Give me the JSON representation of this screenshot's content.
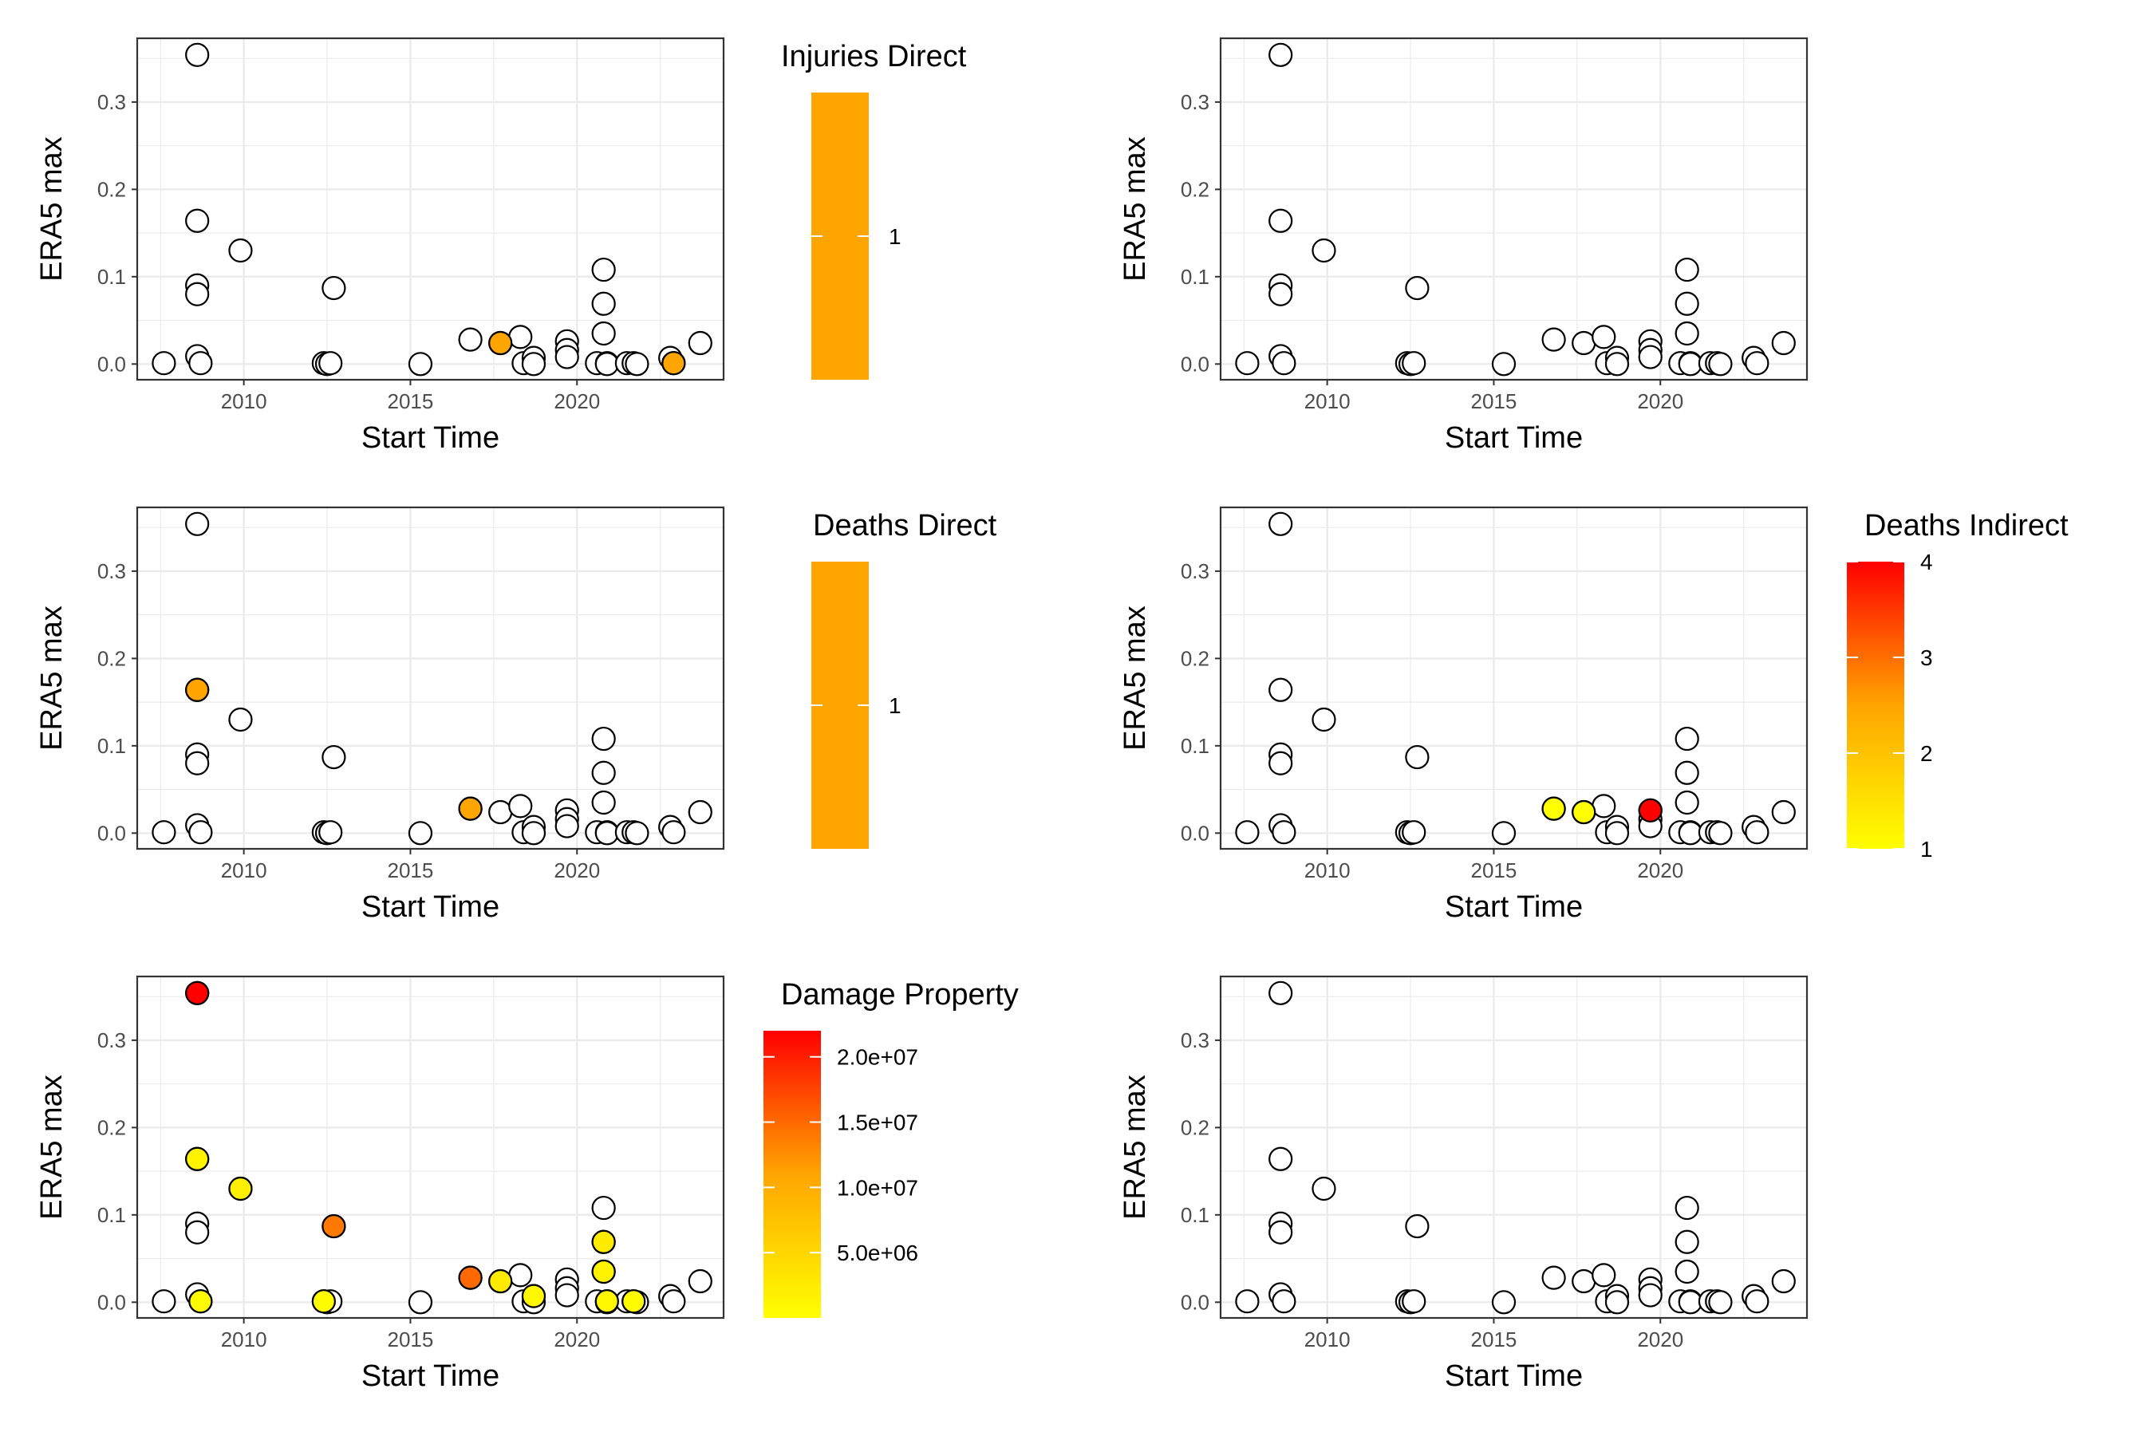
{
  "figure": {
    "xlabel": "Start Time",
    "ylabel": "ERA5 max",
    "xlim": [
      2006.8,
      2024.4
    ],
    "ylim": [
      -0.018,
      0.373
    ],
    "x_ticks": [
      2010,
      2015,
      2020
    ],
    "x_tick_labels": [
      "2010",
      "2015",
      "2020"
    ],
    "y_ticks": [
      0.0,
      0.1,
      0.2,
      0.3
    ],
    "y_tick_labels": [
      "0.0",
      "0.1",
      "0.2",
      "0.3"
    ],
    "colors": {
      "low": "#FFFF00",
      "mid": "#FFA500",
      "high": "#FF0000",
      "unfilled": "#FFFFFF",
      "outline": "#000000",
      "panel_border": "#333333",
      "grid": "#EBEBEB"
    }
  },
  "chart_data": [
    {
      "type": "scatter",
      "panel": "top-left",
      "xlabel": "Start Time",
      "ylabel": "ERA5 max",
      "legend": {
        "title": "Injuries Direct",
        "kind": "single",
        "color": "#FFA500",
        "labels": [
          "1"
        ]
      },
      "base_points": [
        [
          2007.6,
          0.001
        ],
        [
          2008.6,
          0.354
        ],
        [
          2008.6,
          0.164
        ],
        [
          2008.6,
          0.09
        ],
        [
          2008.6,
          0.08
        ],
        [
          2008.6,
          0.009
        ],
        [
          2008.7,
          0.001
        ],
        [
          2009.9,
          0.13
        ],
        [
          2012.4,
          0.001
        ],
        [
          2012.5,
          0.0
        ],
        [
          2012.6,
          0.001
        ],
        [
          2012.7,
          0.087
        ],
        [
          2015.3,
          0.0
        ],
        [
          2016.8,
          0.028
        ],
        [
          2017.7,
          0.024
        ],
        [
          2018.3,
          0.031
        ],
        [
          2018.4,
          0.001
        ],
        [
          2018.7,
          0.007
        ],
        [
          2018.7,
          0.0
        ],
        [
          2019.7,
          0.026
        ],
        [
          2019.7,
          0.016
        ],
        [
          2019.7,
          0.008
        ],
        [
          2020.6,
          0.001
        ],
        [
          2020.8,
          0.108
        ],
        [
          2020.8,
          0.069
        ],
        [
          2020.8,
          0.035
        ],
        [
          2020.9,
          0.001
        ],
        [
          2020.9,
          0.0
        ],
        [
          2021.5,
          0.001
        ],
        [
          2021.7,
          0.001
        ],
        [
          2021.8,
          0.0
        ],
        [
          2022.8,
          0.007
        ],
        [
          2022.9,
          0.001
        ],
        [
          2023.7,
          0.024
        ]
      ],
      "colored_points": [
        {
          "x": 2017.7,
          "y": 0.024,
          "value": 1,
          "color": "#FFA500"
        },
        {
          "x": 2022.9,
          "y": 0.001,
          "value": 1,
          "color": "#FFA500"
        }
      ]
    },
    {
      "type": "scatter",
      "panel": "top-right",
      "xlabel": "Start Time",
      "ylabel": "ERA5 max",
      "legend": null,
      "base_points": [
        [
          2007.6,
          0.001
        ],
        [
          2008.6,
          0.354
        ],
        [
          2008.6,
          0.164
        ],
        [
          2008.6,
          0.09
        ],
        [
          2008.6,
          0.08
        ],
        [
          2008.6,
          0.009
        ],
        [
          2008.7,
          0.001
        ],
        [
          2009.9,
          0.13
        ],
        [
          2012.4,
          0.001
        ],
        [
          2012.5,
          0.0
        ],
        [
          2012.6,
          0.001
        ],
        [
          2012.7,
          0.087
        ],
        [
          2015.3,
          0.0
        ],
        [
          2016.8,
          0.028
        ],
        [
          2017.7,
          0.024
        ],
        [
          2018.3,
          0.031
        ],
        [
          2018.4,
          0.001
        ],
        [
          2018.7,
          0.007
        ],
        [
          2018.7,
          0.0
        ],
        [
          2019.7,
          0.026
        ],
        [
          2019.7,
          0.016
        ],
        [
          2019.7,
          0.008
        ],
        [
          2020.6,
          0.001
        ],
        [
          2020.8,
          0.108
        ],
        [
          2020.8,
          0.069
        ],
        [
          2020.8,
          0.035
        ],
        [
          2020.9,
          0.001
        ],
        [
          2020.9,
          0.0
        ],
        [
          2021.5,
          0.001
        ],
        [
          2021.7,
          0.001
        ],
        [
          2021.8,
          0.0
        ],
        [
          2022.8,
          0.007
        ],
        [
          2022.9,
          0.001
        ],
        [
          2023.7,
          0.024
        ]
      ],
      "colored_points": []
    },
    {
      "type": "scatter",
      "panel": "middle-left",
      "xlabel": "Start Time",
      "ylabel": "ERA5 max",
      "legend": {
        "title": "Deaths Direct",
        "kind": "single",
        "color": "#FFA500",
        "labels": [
          "1"
        ]
      },
      "base_points": [
        [
          2007.6,
          0.001
        ],
        [
          2008.6,
          0.354
        ],
        [
          2008.6,
          0.164
        ],
        [
          2008.6,
          0.09
        ],
        [
          2008.6,
          0.08
        ],
        [
          2008.6,
          0.009
        ],
        [
          2008.7,
          0.001
        ],
        [
          2009.9,
          0.13
        ],
        [
          2012.4,
          0.001
        ],
        [
          2012.5,
          0.0
        ],
        [
          2012.6,
          0.001
        ],
        [
          2012.7,
          0.087
        ],
        [
          2015.3,
          0.0
        ],
        [
          2016.8,
          0.028
        ],
        [
          2017.7,
          0.024
        ],
        [
          2018.3,
          0.031
        ],
        [
          2018.4,
          0.001
        ],
        [
          2018.7,
          0.007
        ],
        [
          2018.7,
          0.0
        ],
        [
          2019.7,
          0.026
        ],
        [
          2019.7,
          0.016
        ],
        [
          2019.7,
          0.008
        ],
        [
          2020.6,
          0.001
        ],
        [
          2020.8,
          0.108
        ],
        [
          2020.8,
          0.069
        ],
        [
          2020.8,
          0.035
        ],
        [
          2020.9,
          0.001
        ],
        [
          2020.9,
          0.0
        ],
        [
          2021.5,
          0.001
        ],
        [
          2021.7,
          0.001
        ],
        [
          2021.8,
          0.0
        ],
        [
          2022.8,
          0.007
        ],
        [
          2022.9,
          0.001
        ],
        [
          2023.7,
          0.024
        ]
      ],
      "colored_points": [
        {
          "x": 2008.6,
          "y": 0.164,
          "value": 1,
          "color": "#FFA500"
        },
        {
          "x": 2016.8,
          "y": 0.028,
          "value": 1,
          "color": "#FFA500"
        }
      ]
    },
    {
      "type": "scatter",
      "panel": "middle-right",
      "xlabel": "Start Time",
      "ylabel": "ERA5 max",
      "legend": {
        "title": "Deaths Indirect",
        "kind": "gradient",
        "min": 1,
        "max": 4,
        "ticks": [
          1,
          2,
          3,
          4
        ],
        "labels": [
          "1",
          "2",
          "3",
          "4"
        ]
      },
      "base_points": [
        [
          2007.6,
          0.001
        ],
        [
          2008.6,
          0.354
        ],
        [
          2008.6,
          0.164
        ],
        [
          2008.6,
          0.09
        ],
        [
          2008.6,
          0.08
        ],
        [
          2008.6,
          0.009
        ],
        [
          2008.7,
          0.001
        ],
        [
          2009.9,
          0.13
        ],
        [
          2012.4,
          0.001
        ],
        [
          2012.5,
          0.0
        ],
        [
          2012.6,
          0.001
        ],
        [
          2012.7,
          0.087
        ],
        [
          2015.3,
          0.0
        ],
        [
          2016.8,
          0.028
        ],
        [
          2017.7,
          0.024
        ],
        [
          2018.3,
          0.031
        ],
        [
          2018.4,
          0.001
        ],
        [
          2018.7,
          0.007
        ],
        [
          2018.7,
          0.0
        ],
        [
          2019.7,
          0.026
        ],
        [
          2019.7,
          0.016
        ],
        [
          2019.7,
          0.008
        ],
        [
          2020.6,
          0.001
        ],
        [
          2020.8,
          0.108
        ],
        [
          2020.8,
          0.069
        ],
        [
          2020.8,
          0.035
        ],
        [
          2020.9,
          0.001
        ],
        [
          2020.9,
          0.0
        ],
        [
          2021.5,
          0.001
        ],
        [
          2021.7,
          0.001
        ],
        [
          2021.8,
          0.0
        ],
        [
          2022.8,
          0.007
        ],
        [
          2022.9,
          0.001
        ],
        [
          2023.7,
          0.024
        ]
      ],
      "colored_points": [
        {
          "x": 2016.8,
          "y": 0.028,
          "value": 1
        },
        {
          "x": 2017.7,
          "y": 0.024,
          "value": 1
        },
        {
          "x": 2019.7,
          "y": 0.026,
          "value": 4
        }
      ]
    },
    {
      "type": "scatter",
      "panel": "bottom-left",
      "xlabel": "Start Time",
      "ylabel": "ERA5 max",
      "legend": {
        "title": "Damage Property",
        "kind": "gradient",
        "min": 0,
        "max": 22000000,
        "ticks": [
          5000000,
          10000000,
          15000000,
          20000000
        ],
        "labels": [
          "5.0e+06",
          "1.0e+07",
          "1.5e+07",
          "2.0e+07"
        ]
      },
      "base_points": [
        [
          2007.6,
          0.001
        ],
        [
          2008.6,
          0.354
        ],
        [
          2008.6,
          0.164
        ],
        [
          2008.6,
          0.09
        ],
        [
          2008.6,
          0.08
        ],
        [
          2008.6,
          0.009
        ],
        [
          2008.7,
          0.001
        ],
        [
          2009.9,
          0.13
        ],
        [
          2012.4,
          0.001
        ],
        [
          2012.5,
          0.0
        ],
        [
          2012.6,
          0.001
        ],
        [
          2012.7,
          0.087
        ],
        [
          2015.3,
          0.0
        ],
        [
          2016.8,
          0.028
        ],
        [
          2017.7,
          0.024
        ],
        [
          2018.3,
          0.031
        ],
        [
          2018.4,
          0.001
        ],
        [
          2018.7,
          0.007
        ],
        [
          2018.7,
          0.0
        ],
        [
          2019.7,
          0.026
        ],
        [
          2019.7,
          0.016
        ],
        [
          2019.7,
          0.008
        ],
        [
          2020.6,
          0.001
        ],
        [
          2020.8,
          0.108
        ],
        [
          2020.8,
          0.069
        ],
        [
          2020.8,
          0.035
        ],
        [
          2020.9,
          0.001
        ],
        [
          2020.9,
          0.0
        ],
        [
          2021.5,
          0.001
        ],
        [
          2021.7,
          0.001
        ],
        [
          2021.8,
          0.0
        ],
        [
          2022.8,
          0.007
        ],
        [
          2022.9,
          0.001
        ],
        [
          2023.7,
          0.024
        ]
      ],
      "colored_points": [
        {
          "x": 2008.6,
          "y": 0.354,
          "value": 22000000
        },
        {
          "x": 2008.6,
          "y": 0.164,
          "value": 1500000
        },
        {
          "x": 2008.7,
          "y": 0.001,
          "value": 500000
        },
        {
          "x": 2009.9,
          "y": 0.13,
          "value": 2000000
        },
        {
          "x": 2012.4,
          "y": 0.001,
          "value": 500000
        },
        {
          "x": 2012.7,
          "y": 0.087,
          "value": 14000000
        },
        {
          "x": 2016.8,
          "y": 0.028,
          "value": 15000000
        },
        {
          "x": 2017.7,
          "y": 0.024,
          "value": 2500000
        },
        {
          "x": 2018.7,
          "y": 0.007,
          "value": 1000000
        },
        {
          "x": 2020.8,
          "y": 0.069,
          "value": 2500000
        },
        {
          "x": 2020.8,
          "y": 0.035,
          "value": 1500000
        },
        {
          "x": 2020.9,
          "y": 0.001,
          "value": 1000000
        },
        {
          "x": 2021.7,
          "y": 0.001,
          "value": 500000
        }
      ]
    },
    {
      "type": "scatter",
      "panel": "bottom-right",
      "xlabel": "Start Time",
      "ylabel": "ERA5 max",
      "legend": null,
      "base_points": [
        [
          2007.6,
          0.001
        ],
        [
          2008.6,
          0.354
        ],
        [
          2008.6,
          0.164
        ],
        [
          2008.6,
          0.09
        ],
        [
          2008.6,
          0.08
        ],
        [
          2008.6,
          0.009
        ],
        [
          2008.7,
          0.001
        ],
        [
          2009.9,
          0.13
        ],
        [
          2012.4,
          0.001
        ],
        [
          2012.5,
          0.0
        ],
        [
          2012.6,
          0.001
        ],
        [
          2012.7,
          0.087
        ],
        [
          2015.3,
          0.0
        ],
        [
          2016.8,
          0.028
        ],
        [
          2017.7,
          0.024
        ],
        [
          2018.3,
          0.031
        ],
        [
          2018.4,
          0.001
        ],
        [
          2018.7,
          0.007
        ],
        [
          2018.7,
          0.0
        ],
        [
          2019.7,
          0.026
        ],
        [
          2019.7,
          0.016
        ],
        [
          2019.7,
          0.008
        ],
        [
          2020.6,
          0.001
        ],
        [
          2020.8,
          0.108
        ],
        [
          2020.8,
          0.069
        ],
        [
          2020.8,
          0.035
        ],
        [
          2020.9,
          0.001
        ],
        [
          2020.9,
          0.0
        ],
        [
          2021.5,
          0.001
        ],
        [
          2021.7,
          0.001
        ],
        [
          2021.8,
          0.0
        ],
        [
          2022.8,
          0.007
        ],
        [
          2022.9,
          0.001
        ],
        [
          2023.7,
          0.024
        ]
      ],
      "colored_points": []
    }
  ]
}
